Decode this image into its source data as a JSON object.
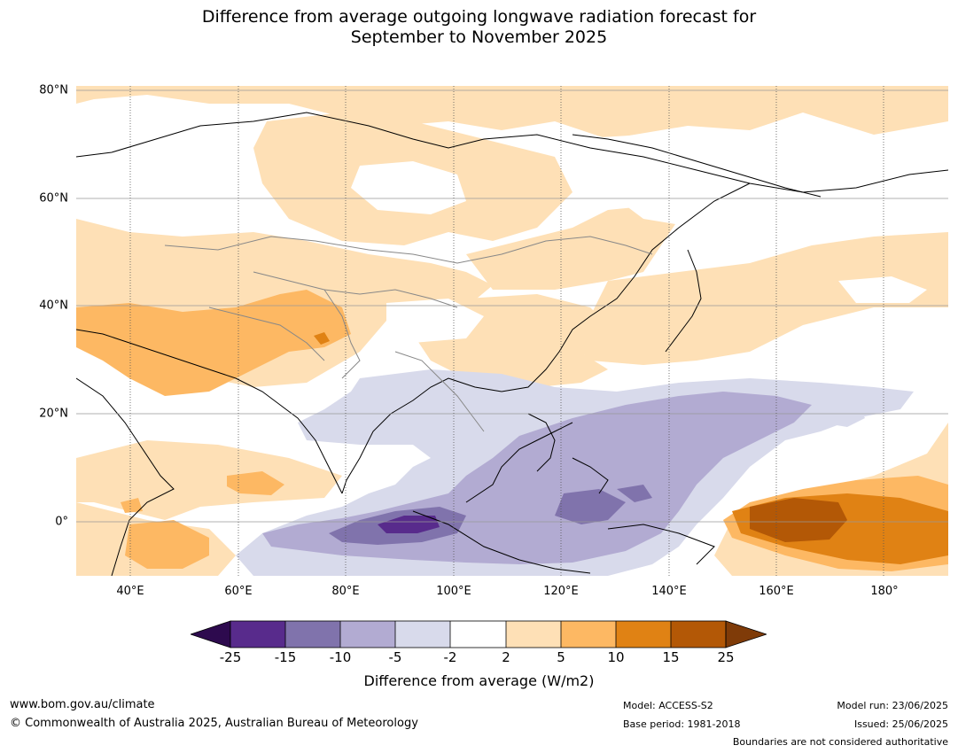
{
  "title_line1": "Difference from average outgoing longwave radiation forecast for",
  "title_line2": "September to November 2025",
  "map": {
    "projection": "plate-carree",
    "lon_range": [
      30,
      192
    ],
    "lat_range": [
      -10,
      81
    ],
    "grid": true,
    "lat_ticks": [
      {
        "value": 80,
        "label": "80°N"
      },
      {
        "value": 60,
        "label": "60°N"
      },
      {
        "value": 40,
        "label": "40°N"
      },
      {
        "value": 20,
        "label": "20°N"
      },
      {
        "value": 0,
        "label": "0°"
      }
    ],
    "lon_ticks": [
      {
        "value": 40,
        "label": "40°E"
      },
      {
        "value": 60,
        "label": "60°E"
      },
      {
        "value": 80,
        "label": "80°E"
      },
      {
        "value": 100,
        "label": "100°E"
      },
      {
        "value": 120,
        "label": "120°E"
      },
      {
        "value": 140,
        "label": "140°E"
      },
      {
        "value": 160,
        "label": "160°E"
      },
      {
        "value": 180,
        "label": "180°"
      }
    ]
  },
  "colorbar": {
    "title": "Difference from average (W/m2)",
    "tick_labels": [
      "-25",
      "-15",
      "-10",
      "-5",
      "-2",
      "2",
      "5",
      "10",
      "15",
      "25"
    ],
    "colors": {
      "below_-25": "#2d0a4e",
      "-25_-15": "#582b8c",
      "-15_-10": "#8073ac",
      "-10_-5": "#b2abd2",
      "-5_-2": "#d8daeb",
      "-2_2": "#ffffff",
      "2_5": "#fee0b6",
      "5_10": "#fdb863",
      "10_15": "#e08214",
      "15_25": "#b35806",
      "above_25": "#7f3b08"
    }
  },
  "footer": {
    "website": "www.bom.gov.au/climate",
    "copyright": "© Commonwealth of Australia 2025, Australian Bureau of Meteorology",
    "model": "Model: ACCESS-S2",
    "base_period": "Base period: 1981-2018",
    "model_run": "Model run: 23/06/2025",
    "issued": "Issued: 25/06/2025",
    "disclaimer": "Boundaries are not considered authoritative"
  }
}
